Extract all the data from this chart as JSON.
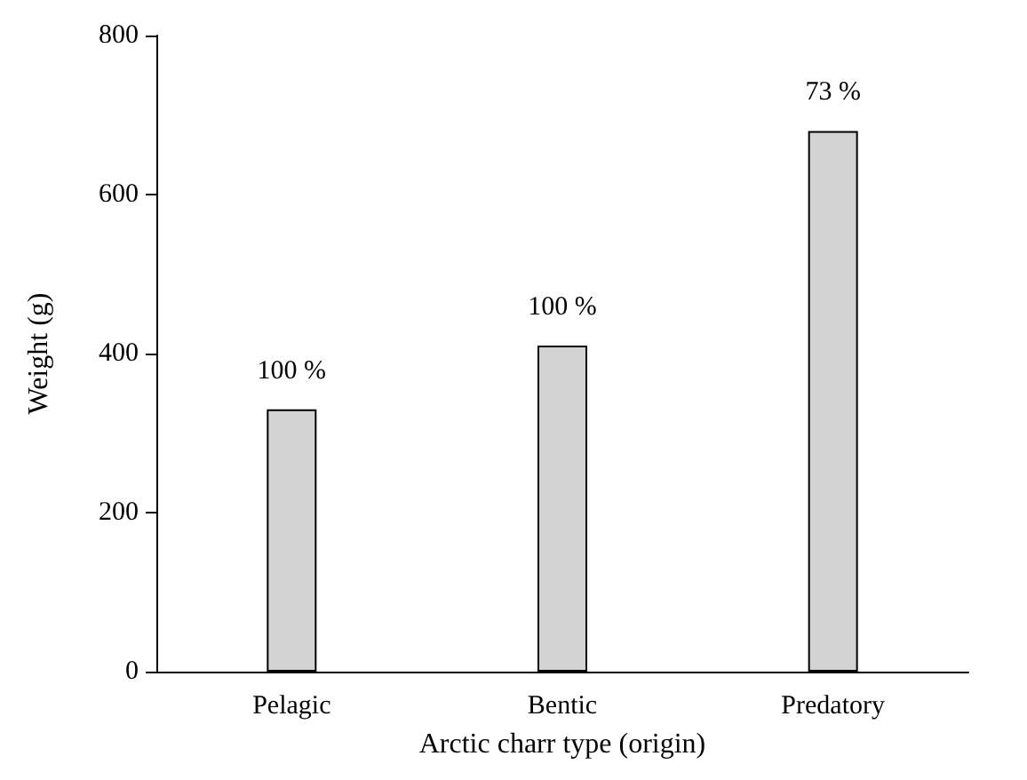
{
  "chart_data": {
    "type": "bar",
    "xlabel": "Arctic charr type (origin)",
    "ylabel": "Weight (g)",
    "categories": [
      "Pelagic",
      "Bentic",
      "Predatory"
    ],
    "values": [
      330,
      410,
      680
    ],
    "color": "#d3d3d3",
    "annotations": [
      {
        "text": "100 %",
        "x": "Pelagic",
        "y": 330
      },
      {
        "text": "100 %",
        "x": "Bentic",
        "y": 410
      },
      {
        "text": "73 %",
        "x": "Predatory",
        "y": 680
      }
    ],
    "ylim": [
      0,
      800
    ],
    "yticks": [
      0,
      200,
      400,
      600,
      800
    ],
    "grid": false
  }
}
